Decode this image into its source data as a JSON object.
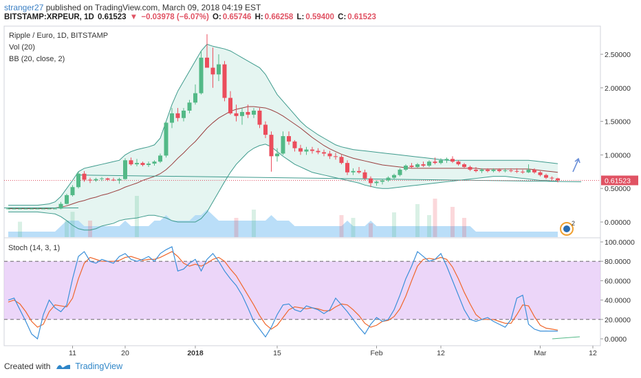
{
  "header": {
    "user": "stranger27",
    "publish_text": " published on TradingView.com, March 09, 2018 04:19 EST",
    "symbol": "BITSTAMP:XRPEUR, 1D",
    "last": "0.61523",
    "change": "−0.03978 (−6.07%)",
    "o_label": "O:",
    "o": "0.65746",
    "h_label": "H:",
    "h": "0.66258",
    "l_label": "L:",
    "l": "0.59400",
    "c_label": "C:",
    "c": "0.61523"
  },
  "legend": {
    "main_title": "Ripple / Euro, 1D, BITSTAMP",
    "vol": "Vol (20)",
    "bb": "BB (20, close, 2)",
    "stoch": "Stoch (14, 3, 1)",
    "alert_badge": "2"
  },
  "footer": {
    "created_with": "Created with",
    "brand": "TradingView"
  },
  "colors": {
    "up": "#53b987",
    "down": "#eb4d5c",
    "bb_band": "#3d9a8c",
    "bb_basis": "#9a3e3e",
    "bb_fill": "#e2f4ef",
    "volume": "#aed8f7",
    "stoch_k": "#3a8fd9",
    "stoch_d": "#f0662b",
    "stoch_band": "#e6c8f7",
    "price_line": "#e05263",
    "trend": "#3d9a8c"
  },
  "chart_data": [
    {
      "type": "candlestick",
      "title": "Ripple / Euro, 1D, BITSTAMP",
      "price_axis": {
        "ticks": [
          0.0,
          0.5,
          1.0,
          1.5,
          2.0,
          2.5
        ],
        "labels": [
          "0.00000",
          "0.50000",
          "1.00000",
          "1.50000",
          "2.00000",
          "2.50000"
        ],
        "last_price_label": "0.61523"
      },
      "time_axis": {
        "labels": [
          "11",
          "20",
          "2018",
          "15",
          "Feb",
          "12",
          "Mar",
          "12"
        ],
        "label_days": [
          11,
          20,
          32,
          46,
          63,
          74,
          91,
          100
        ]
      },
      "first_day": 0,
      "candles": [
        [
          0.2,
          0.21,
          0.19,
          0.2
        ],
        [
          0.2,
          0.21,
          0.19,
          0.2
        ],
        [
          0.2,
          0.21,
          0.19,
          0.2
        ],
        [
          0.2,
          0.21,
          0.19,
          0.2
        ],
        [
          0.2,
          0.21,
          0.19,
          0.2
        ],
        [
          0.2,
          0.21,
          0.19,
          0.2
        ],
        [
          0.2,
          0.21,
          0.19,
          0.2
        ],
        [
          0.2,
          0.21,
          0.19,
          0.2
        ],
        [
          0.2,
          0.21,
          0.19,
          0.2
        ],
        [
          0.2,
          0.3,
          0.19,
          0.27
        ],
        [
          0.27,
          0.42,
          0.26,
          0.4
        ],
        [
          0.4,
          0.55,
          0.38,
          0.52
        ],
        [
          0.52,
          0.75,
          0.5,
          0.72
        ],
        [
          0.72,
          0.76,
          0.6,
          0.63
        ],
        [
          0.63,
          0.66,
          0.58,
          0.62
        ],
        [
          0.62,
          0.66,
          0.6,
          0.64
        ],
        [
          0.64,
          0.67,
          0.61,
          0.65
        ],
        [
          0.65,
          0.66,
          0.61,
          0.63
        ],
        [
          0.63,
          0.66,
          0.61,
          0.62
        ],
        [
          0.62,
          0.66,
          0.57,
          0.64
        ],
        [
          0.64,
          0.95,
          0.63,
          0.92
        ],
        [
          0.92,
          0.96,
          0.84,
          0.86
        ],
        [
          0.86,
          0.94,
          0.83,
          0.88
        ],
        [
          0.88,
          0.9,
          0.83,
          0.85
        ],
        [
          0.85,
          0.9,
          0.82,
          0.87
        ],
        [
          0.87,
          0.92,
          0.84,
          0.9
        ],
        [
          0.9,
          1.02,
          0.88,
          0.99
        ],
        [
          0.99,
          1.5,
          0.96,
          1.48
        ],
        [
          1.48,
          1.7,
          1.4,
          1.62
        ],
        [
          1.62,
          1.7,
          1.5,
          1.55
        ],
        [
          1.55,
          1.7,
          1.5,
          1.66
        ],
        [
          1.66,
          1.82,
          1.62,
          1.78
        ],
        [
          1.78,
          2.05,
          1.75,
          1.92
        ],
        [
          1.92,
          2.55,
          1.9,
          2.45
        ],
        [
          2.45,
          2.8,
          2.3,
          2.3
        ],
        [
          2.3,
          2.6,
          2.0,
          2.2
        ],
        [
          2.2,
          2.5,
          2.1,
          2.35
        ],
        [
          2.35,
          2.4,
          1.8,
          1.85
        ],
        [
          1.85,
          1.95,
          1.6,
          1.62
        ],
        [
          1.62,
          1.75,
          1.5,
          1.58
        ],
        [
          1.58,
          1.7,
          1.45,
          1.64
        ],
        [
          1.64,
          1.75,
          1.55,
          1.6
        ],
        [
          1.6,
          1.7,
          1.55,
          1.66
        ],
        [
          1.66,
          1.7,
          1.4,
          1.45
        ],
        [
          1.45,
          1.5,
          1.25,
          1.3
        ],
        [
          1.3,
          1.35,
          0.75,
          0.98
        ],
        [
          0.98,
          1.1,
          0.9,
          1.02
        ],
        [
          1.02,
          1.35,
          1.0,
          1.28
        ],
        [
          1.28,
          1.35,
          1.15,
          1.2
        ],
        [
          1.2,
          1.22,
          1.05,
          1.1
        ],
        [
          1.1,
          1.15,
          1.0,
          1.05
        ],
        [
          1.05,
          1.12,
          1.0,
          1.08
        ],
        [
          1.08,
          1.12,
          1.02,
          1.06
        ],
        [
          1.06,
          1.1,
          1.01,
          1.04
        ],
        [
          1.04,
          1.08,
          0.98,
          1.02
        ],
        [
          1.02,
          1.06,
          0.94,
          0.98
        ],
        [
          0.98,
          1.03,
          0.93,
          0.97
        ],
        [
          0.97,
          1.0,
          0.86,
          0.88
        ],
        [
          0.88,
          0.92,
          0.7,
          0.74
        ],
        [
          0.74,
          0.8,
          0.7,
          0.76
        ],
        [
          0.76,
          0.82,
          0.72,
          0.74
        ],
        [
          0.74,
          0.78,
          0.62,
          0.65
        ],
        [
          0.65,
          0.68,
          0.52,
          0.58
        ],
        [
          0.58,
          0.62,
          0.54,
          0.6
        ],
        [
          0.6,
          0.64,
          0.56,
          0.62
        ],
        [
          0.62,
          0.68,
          0.6,
          0.66
        ],
        [
          0.66,
          0.72,
          0.63,
          0.7
        ],
        [
          0.7,
          0.8,
          0.68,
          0.78
        ],
        [
          0.78,
          0.86,
          0.76,
          0.84
        ],
        [
          0.84,
          0.88,
          0.8,
          0.82
        ],
        [
          0.82,
          0.88,
          0.8,
          0.86
        ],
        [
          0.86,
          0.9,
          0.82,
          0.84
        ],
        [
          0.84,
          0.92,
          0.82,
          0.9
        ],
        [
          0.9,
          0.96,
          0.86,
          0.88
        ],
        [
          0.88,
          0.95,
          0.86,
          0.92
        ],
        [
          0.92,
          0.96,
          0.88,
          0.94
        ],
        [
          0.94,
          0.98,
          0.88,
          0.9
        ],
        [
          0.9,
          0.92,
          0.84,
          0.86
        ],
        [
          0.86,
          0.88,
          0.8,
          0.82
        ],
        [
          0.82,
          0.84,
          0.76,
          0.78
        ],
        [
          0.78,
          0.82,
          0.74,
          0.76
        ],
        [
          0.76,
          0.8,
          0.73,
          0.78
        ],
        [
          0.78,
          0.8,
          0.74,
          0.76
        ],
        [
          0.76,
          0.8,
          0.74,
          0.78
        ],
        [
          0.78,
          0.8,
          0.74,
          0.76
        ],
        [
          0.76,
          0.8,
          0.74,
          0.77
        ],
        [
          0.77,
          0.8,
          0.74,
          0.76
        ],
        [
          0.76,
          0.8,
          0.73,
          0.75
        ],
        [
          0.75,
          0.78,
          0.72,
          0.74
        ],
        [
          0.74,
          0.86,
          0.73,
          0.78
        ],
        [
          0.78,
          0.8,
          0.72,
          0.74
        ],
        [
          0.74,
          0.76,
          0.68,
          0.7
        ],
        [
          0.7,
          0.72,
          0.64,
          0.66
        ],
        [
          0.66,
          0.68,
          0.62,
          0.65
        ],
        [
          0.65,
          0.66,
          0.59,
          0.62
        ]
      ],
      "volume": [
        1,
        1,
        1,
        1,
        1,
        1,
        1,
        1,
        1,
        2,
        3,
        3,
        3,
        2,
        2,
        2,
        2,
        2,
        2,
        2,
        3,
        2,
        2,
        2,
        2,
        3,
        3,
        4,
        3,
        3,
        3,
        3,
        4,
        4,
        5,
        4,
        3,
        3,
        3,
        3,
        3,
        3,
        3,
        3,
        3,
        4,
        3,
        3,
        3,
        2,
        2,
        2,
        2,
        2,
        2,
        2,
        2,
        2,
        3,
        2,
        2,
        2,
        3,
        2,
        2,
        2,
        2,
        2,
        2,
        2,
        2,
        2,
        2,
        2,
        2,
        2,
        2,
        2,
        2,
        2,
        1,
        1,
        1,
        1,
        1,
        1,
        1,
        1,
        1,
        1,
        1,
        1,
        1,
        1,
        1
      ],
      "volume_highlights": [
        [
          2,
          2.8
        ],
        [
          10,
          3.0
        ],
        [
          11,
          4.6
        ],
        [
          14,
          3.0
        ],
        [
          22,
          7.5
        ],
        [
          39,
          3.5
        ],
        [
          42,
          5.0
        ],
        [
          57,
          4.0
        ],
        [
          59,
          3.5
        ],
        [
          62,
          2.5
        ],
        [
          66,
          4.5
        ],
        [
          70,
          6.0
        ],
        [
          72,
          4.0
        ],
        [
          73,
          7.0
        ],
        [
          76,
          5.5
        ],
        [
          78,
          3.5
        ]
      ],
      "bb": {
        "upper": [
          0.25,
          0.25,
          0.25,
          0.25,
          0.25,
          0.25,
          0.26,
          0.27,
          0.3,
          0.38,
          0.5,
          0.62,
          0.75,
          0.8,
          0.82,
          0.84,
          0.86,
          0.88,
          0.9,
          0.92,
          1.0,
          1.05,
          1.08,
          1.1,
          1.12,
          1.15,
          1.25,
          1.5,
          1.75,
          1.95,
          2.1,
          2.25,
          2.4,
          2.55,
          2.65,
          2.62,
          2.6,
          2.58,
          2.55,
          2.5,
          2.45,
          2.4,
          2.35,
          2.3,
          2.2,
          2.05,
          1.9,
          1.8,
          1.7,
          1.6,
          1.5,
          1.42,
          1.36,
          1.3,
          1.25,
          1.2,
          1.15,
          1.12,
          1.1,
          1.08,
          1.07,
          1.06,
          1.05,
          1.04,
          1.03,
          1.02,
          1.01,
          1.0,
          0.99,
          0.98,
          0.97,
          0.96,
          0.95,
          0.94,
          0.93,
          0.92,
          0.92,
          0.92,
          0.92,
          0.92,
          0.92,
          0.92,
          0.92,
          0.92,
          0.92,
          0.92,
          0.92,
          0.92,
          0.92,
          0.92,
          0.91,
          0.9,
          0.89,
          0.88,
          0.87
        ],
        "basis": [
          0.2,
          0.2,
          0.2,
          0.2,
          0.2,
          0.2,
          0.2,
          0.2,
          0.21,
          0.22,
          0.24,
          0.27,
          0.3,
          0.32,
          0.35,
          0.37,
          0.4,
          0.42,
          0.45,
          0.48,
          0.52,
          0.55,
          0.58,
          0.62,
          0.65,
          0.68,
          0.72,
          0.78,
          0.86,
          0.95,
          1.03,
          1.12,
          1.2,
          1.3,
          1.4,
          1.48,
          1.55,
          1.6,
          1.65,
          1.68,
          1.7,
          1.72,
          1.72,
          1.71,
          1.7,
          1.67,
          1.63,
          1.58,
          1.52,
          1.46,
          1.4,
          1.33,
          1.26,
          1.2,
          1.14,
          1.09,
          1.05,
          1.01,
          0.98,
          0.95,
          0.93,
          0.91,
          0.89,
          0.87,
          0.85,
          0.84,
          0.83,
          0.82,
          0.81,
          0.8,
          0.8,
          0.8,
          0.8,
          0.8,
          0.8,
          0.8,
          0.8,
          0.8,
          0.8,
          0.8,
          0.8,
          0.79,
          0.79,
          0.79,
          0.79,
          0.79,
          0.79,
          0.79,
          0.79,
          0.79,
          0.78,
          0.77,
          0.76,
          0.75,
          0.74
        ],
        "lower": [
          0.15,
          0.15,
          0.15,
          0.15,
          0.15,
          0.15,
          0.14,
          0.13,
          0.12,
          0.08,
          0.02,
          -0.05,
          -0.1,
          -0.12,
          -0.12,
          -0.1,
          -0.06,
          -0.04,
          -0.02,
          0.02,
          0.04,
          0.05,
          0.06,
          0.08,
          0.1,
          0.1,
          0.08,
          0.06,
          0.02,
          0.0,
          0.0,
          0.0,
          0.0,
          0.05,
          0.15,
          0.3,
          0.45,
          0.6,
          0.74,
          0.86,
          0.95,
          1.04,
          1.1,
          1.14,
          1.16,
          1.12,
          1.05,
          0.98,
          0.92,
          0.86,
          0.82,
          0.78,
          0.74,
          0.72,
          0.7,
          0.68,
          0.66,
          0.64,
          0.62,
          0.6,
          0.58,
          0.55,
          0.53,
          0.51,
          0.5,
          0.5,
          0.51,
          0.52,
          0.53,
          0.54,
          0.55,
          0.56,
          0.57,
          0.58,
          0.59,
          0.6,
          0.61,
          0.62,
          0.63,
          0.64,
          0.65,
          0.66,
          0.67,
          0.68,
          0.68,
          0.68,
          0.67,
          0.66,
          0.65,
          0.64,
          0.63,
          0.62,
          0.62,
          0.61,
          0.61
        ]
      }
    },
    {
      "type": "line",
      "title": "Stoch (14, 3, 1)",
      "ylim": [
        -8,
        102
      ],
      "axis_ticks": [
        0,
        20,
        40,
        60,
        80,
        100
      ],
      "axis_labels": [
        "0.0000",
        "20.0000",
        "40.0000",
        "60.0000",
        "80.0000",
        "100.0000"
      ],
      "band": [
        20,
        80
      ],
      "series": [
        {
          "name": "",
          "values": [
            40,
            42,
            30,
            18,
            5,
            0,
            25,
            40,
            32,
            28,
            35,
            62,
            85,
            90,
            80,
            78,
            82,
            80,
            78,
            85,
            88,
            82,
            80,
            82,
            85,
            80,
            88,
            92,
            95,
            70,
            72,
            78,
            82,
            70,
            82,
            88,
            80,
            70,
            62,
            55,
            45,
            32,
            18,
            10,
            2,
            12,
            25,
            35,
            36,
            30,
            28,
            34,
            32,
            30,
            26,
            30,
            42,
            35,
            28,
            20,
            12,
            5,
            15,
            22,
            18,
            20,
            30,
            45,
            62,
            75,
            90,
            85,
            80,
            82,
            88,
            75,
            60,
            45,
            30,
            20,
            18,
            20,
            22,
            18,
            15,
            12,
            20,
            42,
            45,
            15,
            10,
            8,
            8,
            8,
            8
          ]
        },
        {
          "name": "",
          "values": [
            38,
            40,
            36,
            28,
            18,
            12,
            15,
            28,
            35,
            34,
            33,
            42,
            62,
            78,
            84,
            82,
            80,
            80,
            80,
            81,
            84,
            85,
            83,
            81,
            82,
            82,
            84,
            87,
            90,
            85,
            78,
            75,
            77,
            75,
            78,
            82,
            84,
            80,
            72,
            65,
            55,
            45,
            35,
            24,
            15,
            10,
            14,
            22,
            30,
            33,
            32,
            31,
            32,
            31,
            29,
            29,
            33,
            36,
            35,
            30,
            24,
            16,
            12,
            14,
            18,
            19,
            23,
            31,
            44,
            60,
            75,
            82,
            83,
            82,
            84,
            82,
            74,
            62,
            48,
            36,
            25,
            20,
            20,
            20,
            18,
            16,
            16,
            25,
            35,
            34,
            23,
            14,
            11,
            10,
            9
          ]
        }
      ]
    }
  ]
}
